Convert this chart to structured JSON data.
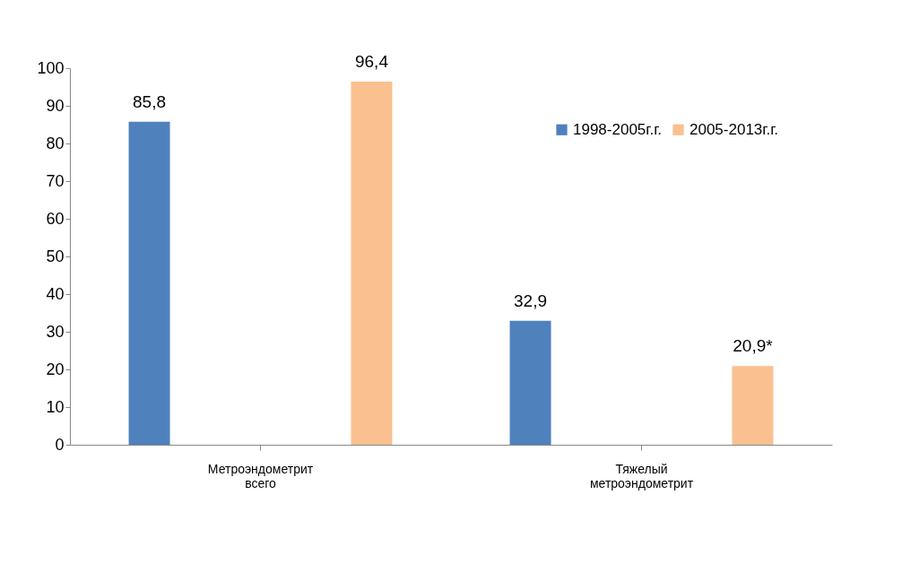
{
  "chart_data": {
    "type": "bar",
    "categories": [
      "Метроэндометрит всего",
      "Тяжелый метроэндометрит"
    ],
    "series": [
      {
        "name": "1998-2005г.г.",
        "color": "#4f81bd",
        "values": [
          85.8,
          32.9
        ],
        "value_labels": [
          "85,8",
          "32,9"
        ]
      },
      {
        "name": "2005-2013г.г.",
        "color": "#fac090",
        "values": [
          96.4,
          20.9
        ],
        "value_labels": [
          "96,4",
          "20,9*"
        ]
      }
    ],
    "ylim": [
      0,
      100
    ],
    "yticks": [
      0,
      10,
      20,
      30,
      40,
      50,
      60,
      70,
      80,
      90,
      100
    ],
    "grid": false,
    "legend": "top right"
  }
}
